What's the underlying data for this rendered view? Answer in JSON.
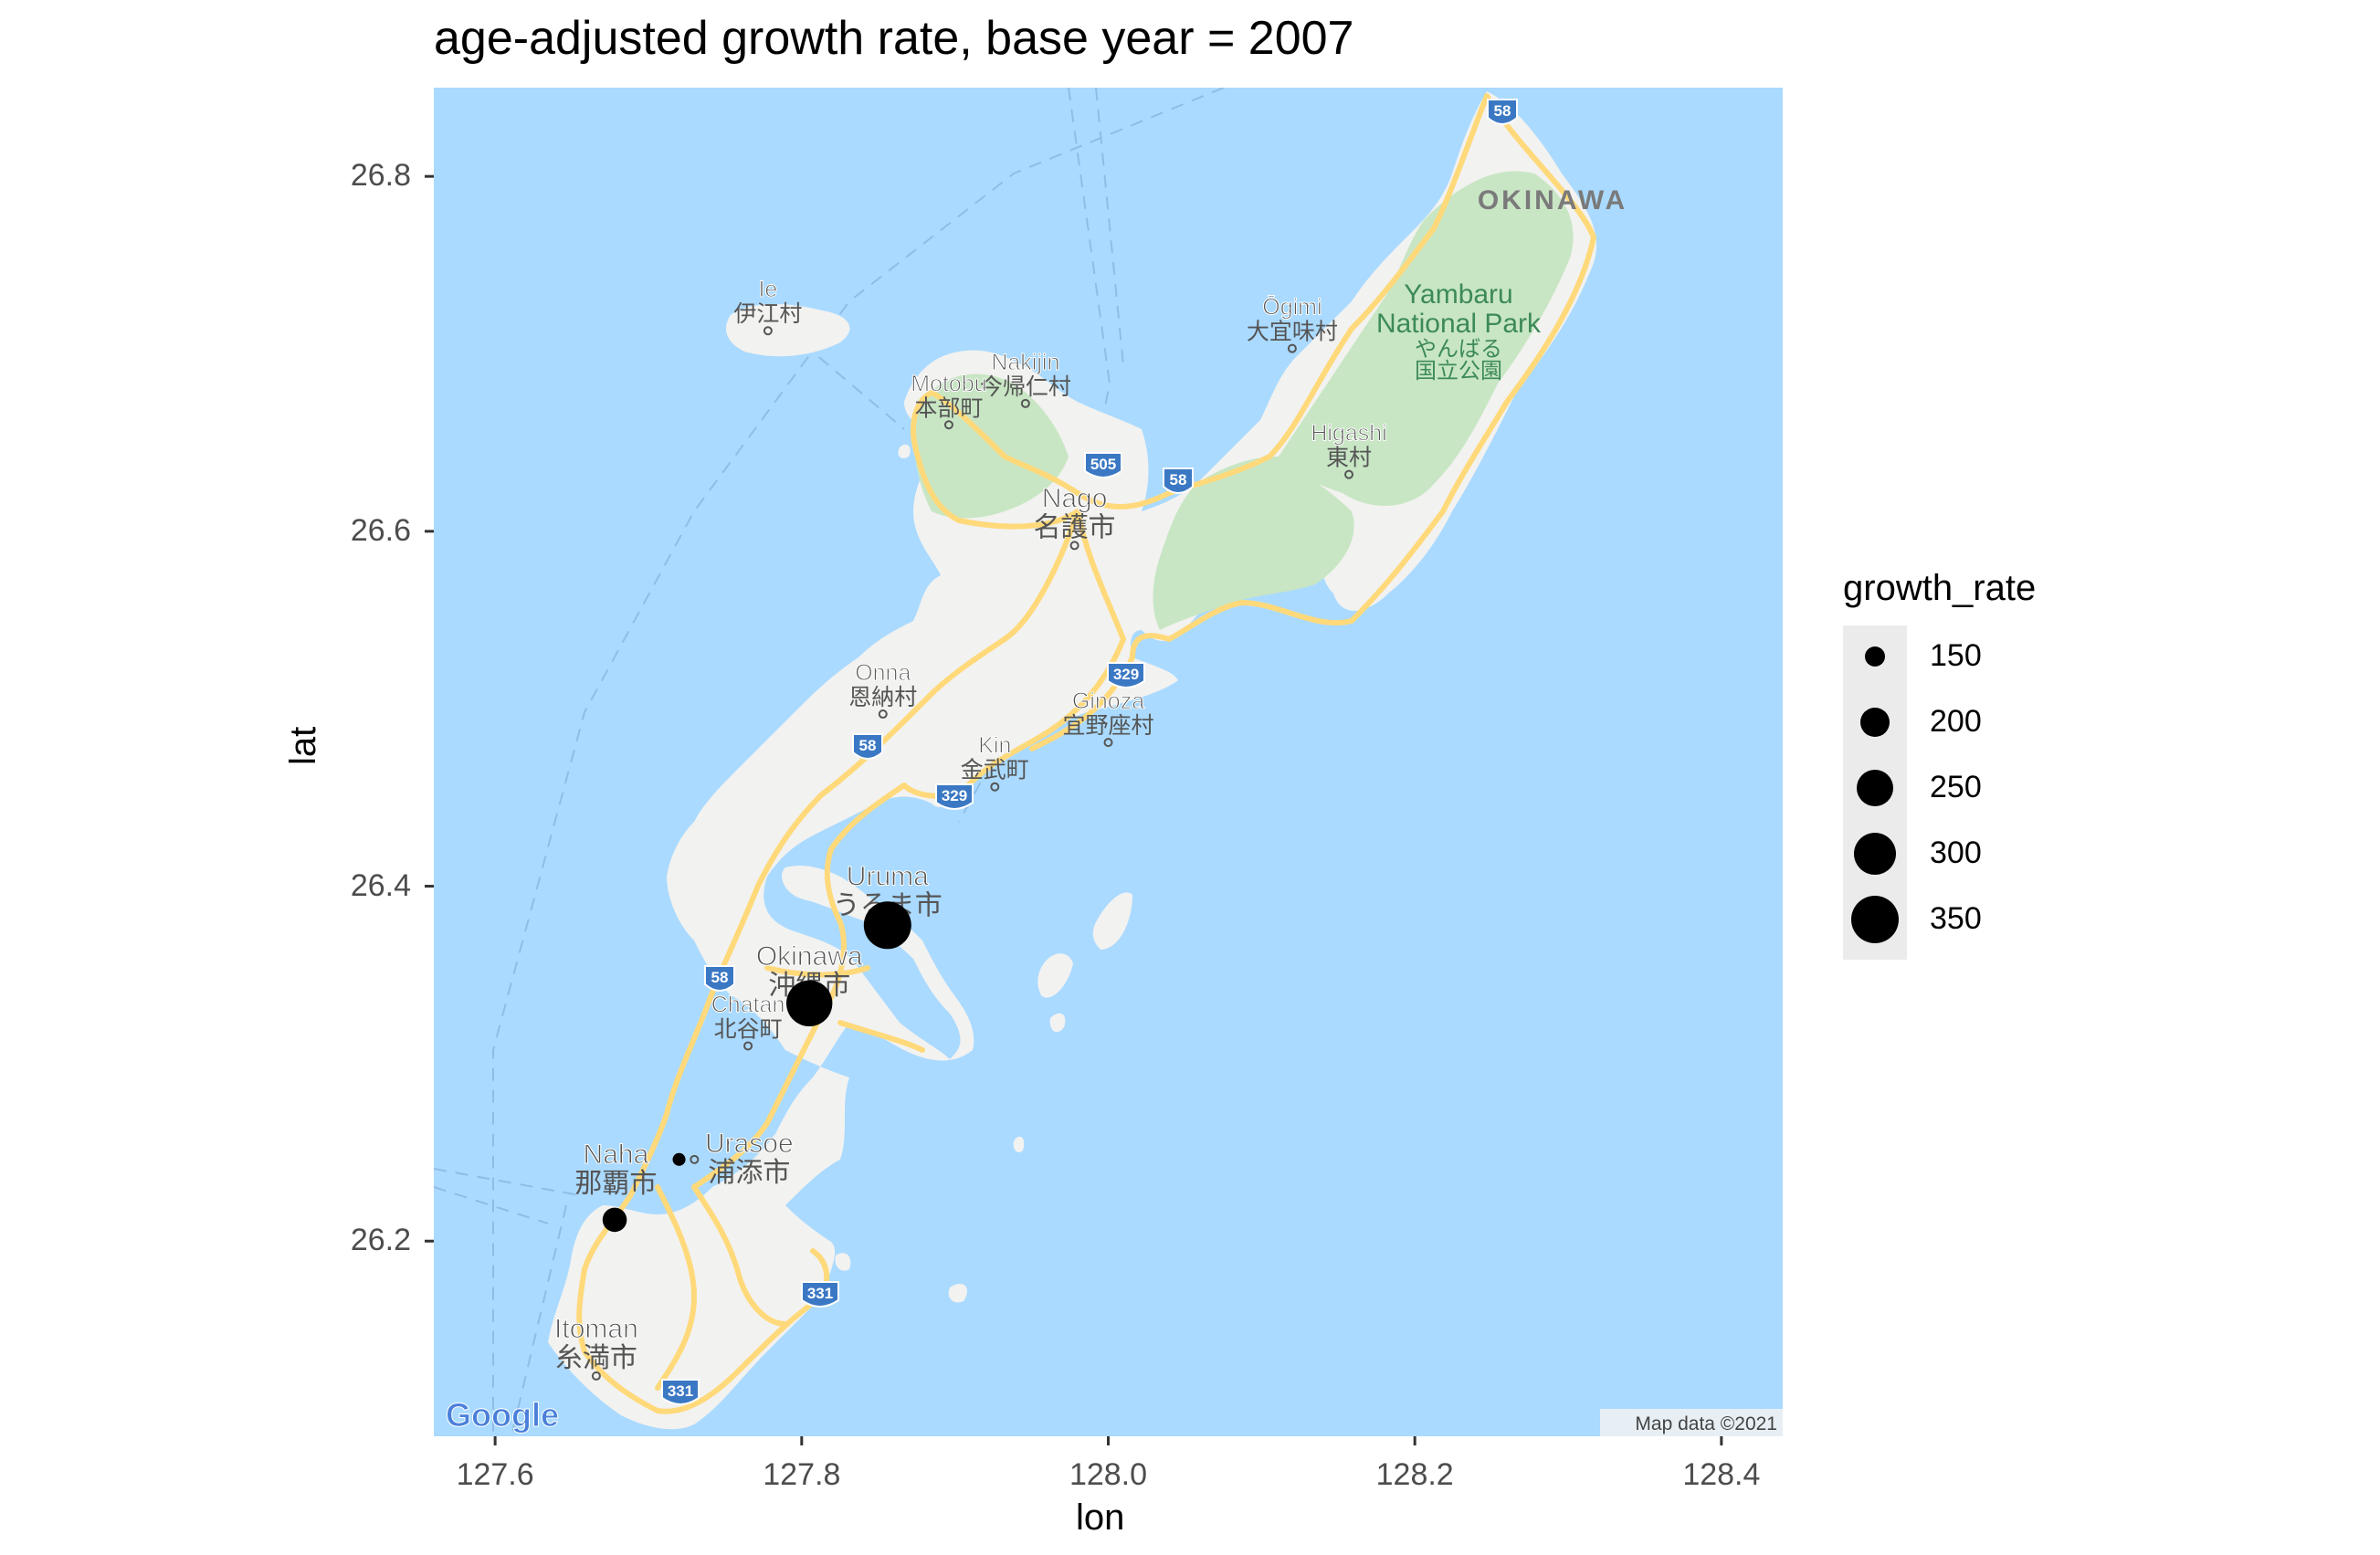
{
  "title": "age-adjusted growth rate, base year = 2007",
  "chart_data": {
    "type": "scatter",
    "title": "age-adjusted growth rate, base year = 2007",
    "xlabel": "lon",
    "ylabel": "lat",
    "xlim": [
      127.56,
      128.44
    ],
    "ylim": [
      26.09,
      26.85
    ],
    "x_ticks": [
      "127.6",
      "127.8",
      "128.0",
      "128.2",
      "128.4"
    ],
    "y_ticks": [
      "26.2",
      "26.4",
      "26.6",
      "26.8"
    ],
    "size_variable": "growth_rate",
    "legend_position": "right",
    "points": [
      {
        "lon": 127.856,
        "lat": 26.378,
        "growth_rate": 350
      },
      {
        "lon": 127.805,
        "lat": 26.334,
        "growth_rate": 335
      },
      {
        "lon": 127.678,
        "lat": 26.212,
        "growth_rate": 170
      },
      {
        "lon": 127.72,
        "lat": 26.246,
        "growth_rate": 125
      }
    ]
  },
  "legend": {
    "title": "growth_rate",
    "items": [
      {
        "label": "150",
        "value": 150
      },
      {
        "label": "200",
        "value": 200
      },
      {
        "label": "250",
        "value": 250
      },
      {
        "label": "300",
        "value": 300
      },
      {
        "label": "350",
        "value": 350
      }
    ]
  },
  "map": {
    "water_color": "#aadaff",
    "land_color": "#f2f2f0",
    "park_color": "#c8e6c4",
    "road_color": "#ffd97a",
    "attribution": "Map data ©2021",
    "logo": "Google",
    "region_label": "OKINAWA",
    "park_label_1": "Yambaru",
    "park_label_2": "National Park",
    "park_label_jp_1": "やんばる",
    "park_label_jp_2": "国立公園",
    "places": [
      {
        "en": "Ie",
        "jp": "伊江村",
        "lon": 127.778,
        "lat": 26.713
      },
      {
        "en": "Nakijin",
        "jp": "今帰仁村",
        "lon": 127.946,
        "lat": 26.672
      },
      {
        "en": "Motobu",
        "jp": "本部町",
        "lon": 127.896,
        "lat": 26.66
      },
      {
        "en": "Ōgimi",
        "jp": "大宜味村",
        "lon": 128.12,
        "lat": 26.703
      },
      {
        "en": "Higashi",
        "jp": "東村",
        "lon": 128.157,
        "lat": 26.632
      },
      {
        "en": "Nago",
        "jp": "名護市",
        "lon": 127.978,
        "lat": 26.592
      },
      {
        "en": "Onna",
        "jp": "恩納村",
        "lon": 127.853,
        "lat": 26.497
      },
      {
        "en": "Kin",
        "jp": "金武町",
        "lon": 127.926,
        "lat": 26.456
      },
      {
        "en": "Ginoza",
        "jp": "宜野座村",
        "lon": 128.0,
        "lat": 26.481
      },
      {
        "en": "Uruma",
        "jp": "うるま市",
        "lon": 127.856,
        "lat": 26.379
      },
      {
        "en": "Okinawa",
        "jp": "沖縄市",
        "lon": 127.805,
        "lat": 26.334
      },
      {
        "en": "Chatan",
        "jp": "北谷町",
        "lon": 127.765,
        "lat": 26.31
      },
      {
        "en": "Urasoe",
        "jp": "浦添市",
        "lon": 127.73,
        "lat": 26.246
      },
      {
        "en": "Naha",
        "jp": "那覇市",
        "lon": 127.68,
        "lat": 26.212
      },
      {
        "en": "Itoman",
        "jp": "糸満市",
        "lon": 127.666,
        "lat": 26.124
      }
    ],
    "route_shields": [
      "58",
      "505",
      "58",
      "329",
      "58",
      "329",
      "58",
      "331",
      "331"
    ]
  }
}
